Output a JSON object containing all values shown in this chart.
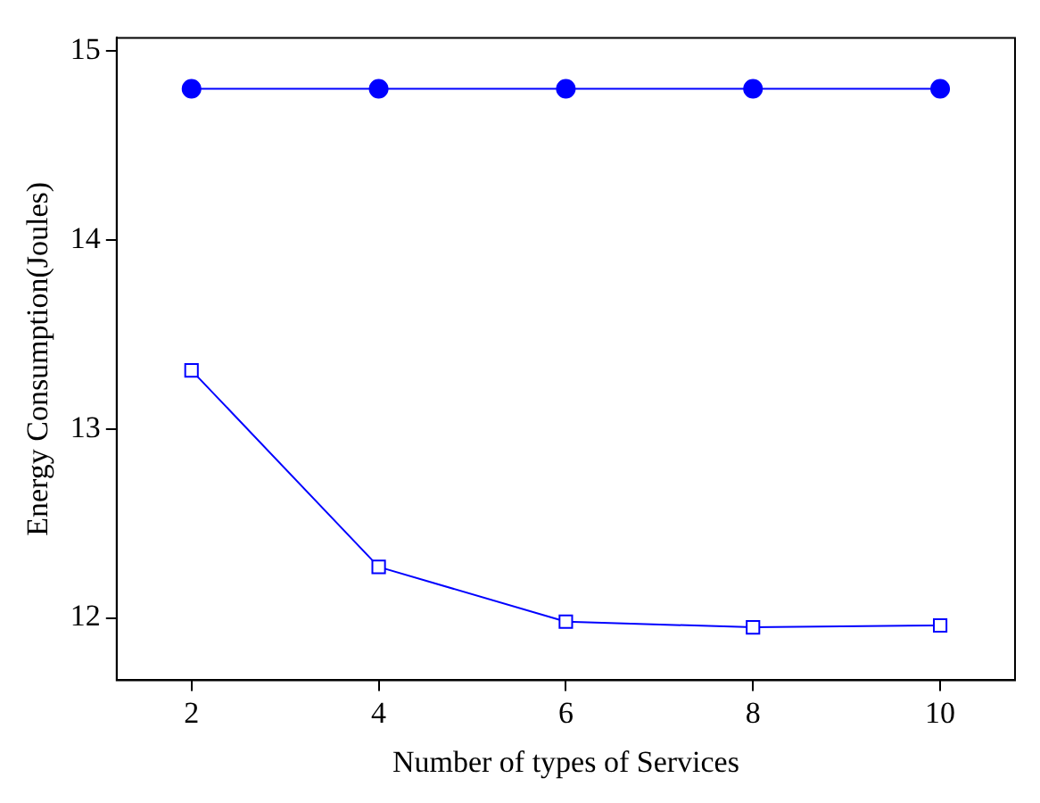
{
  "chart_data": {
    "type": "line",
    "xlabel": "Number of types of Services",
    "ylabel": "Energy Consumption(Joules)",
    "x": [
      2,
      4,
      6,
      8,
      10
    ],
    "series": [
      {
        "color": "#0000ff",
        "marker": "circle",
        "values": [
          14.8,
          14.8,
          14.8,
          14.8,
          14.8
        ]
      },
      {
        "color": "#0000ff",
        "marker": "square",
        "values": [
          13.31,
          12.27,
          11.98,
          11.95,
          11.96
        ]
      }
    ],
    "xlim": [
      1.2,
      10.8
    ],
    "xticks": [
      2,
      4,
      6,
      8,
      10
    ],
    "ylim": [
      11.67,
      15.07
    ],
    "yticks": [
      12,
      13,
      14,
      15
    ],
    "grid": false,
    "legend": false,
    "line_style": "solid"
  }
}
